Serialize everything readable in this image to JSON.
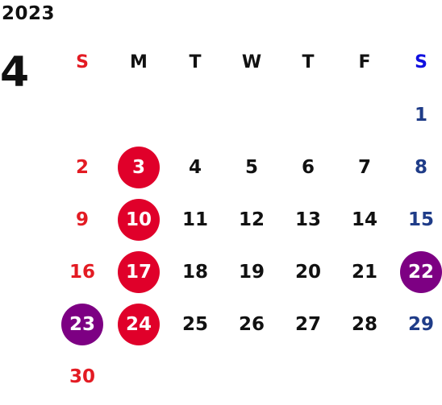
{
  "calendar": {
    "year": "2023",
    "month": "4",
    "weekdays": [
      "S",
      "M",
      "T",
      "W",
      "T",
      "F",
      "S"
    ],
    "weeks": [
      [
        "",
        "",
        "",
        "",
        "",
        "",
        "1"
      ],
      [
        "2",
        "3",
        "4",
        "5",
        "6",
        "7",
        "8"
      ],
      [
        "9",
        "10",
        "11",
        "12",
        "13",
        "14",
        "15"
      ],
      [
        "16",
        "17",
        "18",
        "19",
        "20",
        "21",
        "22"
      ],
      [
        "23",
        "24",
        "25",
        "26",
        "27",
        "28",
        "29"
      ],
      [
        "30",
        "",
        "",
        "",
        "",
        "",
        ""
      ]
    ],
    "highlighted_red": [
      "3",
      "10",
      "17",
      "24"
    ],
    "highlighted_purple": [
      "22",
      "23"
    ]
  },
  "colors": {
    "sunday": "#e31b23",
    "saturday": "#1f3c88",
    "saturday_header": "#1010e0",
    "circle_red": "#e0002a",
    "circle_purple": "#7d0083"
  }
}
